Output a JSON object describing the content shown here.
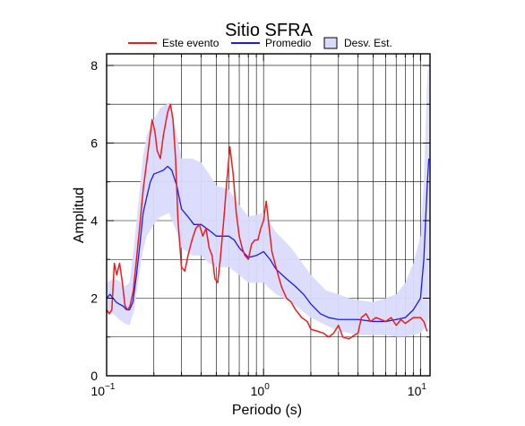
{
  "chart_data": {
    "type": "line",
    "title": "Sitio SFRA",
    "xlabel": "Periodo (s)",
    "ylabel": "Amplitud",
    "x_scale": "log",
    "xlim": [
      0.1,
      11.5
    ],
    "ylim": [
      0,
      8.3
    ],
    "y_ticks": [
      0,
      2,
      4,
      6,
      8
    ],
    "x_ticks": [
      {
        "value": 0.1,
        "base": "10",
        "exp": "−1"
      },
      {
        "value": 1,
        "base": "10",
        "exp": "0"
      },
      {
        "value": 10,
        "base": "10",
        "exp": "1"
      }
    ],
    "grid": true,
    "legend_position": "top-center",
    "legend": [
      {
        "label": "Este evento",
        "kind": "line",
        "color": "#ee1c1c"
      },
      {
        "label": "Promedio",
        "kind": "line",
        "color": "#1a1aee"
      },
      {
        "label": "Desv. Est.",
        "kind": "band",
        "color": "#dadafc"
      }
    ],
    "series": [
      {
        "name": "Este evento",
        "color": "#ee1c1c",
        "points": [
          [
            0.1,
            1.7
          ],
          [
            0.104,
            1.6
          ],
          [
            0.108,
            1.7
          ],
          [
            0.112,
            2.9
          ],
          [
            0.116,
            2.6
          ],
          [
            0.121,
            2.9
          ],
          [
            0.126,
            2.4
          ],
          [
            0.131,
            1.8
          ],
          [
            0.136,
            1.7
          ],
          [
            0.141,
            1.8
          ],
          [
            0.148,
            2.2
          ],
          [
            0.155,
            3.0
          ],
          [
            0.163,
            3.9
          ],
          [
            0.171,
            4.8
          ],
          [
            0.18,
            5.5
          ],
          [
            0.188,
            6.1
          ],
          [
            0.195,
            6.6
          ],
          [
            0.203,
            6.3
          ],
          [
            0.21,
            5.8
          ],
          [
            0.22,
            5.6
          ],
          [
            0.23,
            6.2
          ],
          [
            0.245,
            6.8
          ],
          [
            0.255,
            7.0
          ],
          [
            0.265,
            6.6
          ],
          [
            0.275,
            5.6
          ],
          [
            0.285,
            4.0
          ],
          [
            0.3,
            2.8
          ],
          [
            0.315,
            2.7
          ],
          [
            0.33,
            3.1
          ],
          [
            0.35,
            3.5
          ],
          [
            0.37,
            3.8
          ],
          [
            0.39,
            3.9
          ],
          [
            0.41,
            3.6
          ],
          [
            0.43,
            3.8
          ],
          [
            0.45,
            3.3
          ],
          [
            0.47,
            3.1
          ],
          [
            0.49,
            2.5
          ],
          [
            0.51,
            2.4
          ],
          [
            0.53,
            3.0
          ],
          [
            0.56,
            4.1
          ],
          [
            0.58,
            4.9
          ],
          [
            0.61,
            5.9
          ],
          [
            0.64,
            5.2
          ],
          [
            0.67,
            4.2
          ],
          [
            0.7,
            3.6
          ],
          [
            0.73,
            3.3
          ],
          [
            0.76,
            3.1
          ],
          [
            0.8,
            3.0
          ],
          [
            0.84,
            3.4
          ],
          [
            0.88,
            3.5
          ],
          [
            0.92,
            3.5
          ],
          [
            0.96,
            3.8
          ],
          [
            1.0,
            4.0
          ],
          [
            1.04,
            4.5
          ],
          [
            1.08,
            3.9
          ],
          [
            1.13,
            3.2
          ],
          [
            1.2,
            2.8
          ],
          [
            1.3,
            2.3
          ],
          [
            1.4,
            2.0
          ],
          [
            1.5,
            1.9
          ],
          [
            1.6,
            1.7
          ],
          [
            1.75,
            1.5
          ],
          [
            1.9,
            1.4
          ],
          [
            2.0,
            1.2
          ],
          [
            2.2,
            1.15
          ],
          [
            2.4,
            1.1
          ],
          [
            2.6,
            1.0
          ],
          [
            2.8,
            1.1
          ],
          [
            3.0,
            1.3
          ],
          [
            3.2,
            1.0
          ],
          [
            3.5,
            0.95
          ],
          [
            3.8,
            1.05
          ],
          [
            4.0,
            1.1
          ],
          [
            4.2,
            1.5
          ],
          [
            4.5,
            1.6
          ],
          [
            4.8,
            1.4
          ],
          [
            5.2,
            1.5
          ],
          [
            5.6,
            1.45
          ],
          [
            6.0,
            1.4
          ],
          [
            6.5,
            1.5
          ],
          [
            7.0,
            1.3
          ],
          [
            7.5,
            1.45
          ],
          [
            8.0,
            1.35
          ],
          [
            9.0,
            1.5
          ],
          [
            10.0,
            1.5
          ],
          [
            10.5,
            1.4
          ],
          [
            11.0,
            1.15
          ]
        ]
      },
      {
        "name": "Promedio",
        "color": "#1a1aee",
        "points": [
          [
            0.1,
            2.0
          ],
          [
            0.105,
            2.1
          ],
          [
            0.11,
            2.0
          ],
          [
            0.115,
            1.9
          ],
          [
            0.12,
            1.85
          ],
          [
            0.127,
            1.8
          ],
          [
            0.134,
            1.7
          ],
          [
            0.14,
            1.7
          ],
          [
            0.147,
            1.9
          ],
          [
            0.155,
            2.6
          ],
          [
            0.163,
            3.4
          ],
          [
            0.171,
            4.2
          ],
          [
            0.18,
            4.6
          ],
          [
            0.19,
            5.0
          ],
          [
            0.2,
            5.2
          ],
          [
            0.215,
            5.25
          ],
          [
            0.23,
            5.3
          ],
          [
            0.245,
            5.4
          ],
          [
            0.26,
            5.3
          ],
          [
            0.28,
            4.9
          ],
          [
            0.3,
            4.3
          ],
          [
            0.33,
            4.1
          ],
          [
            0.36,
            3.9
          ],
          [
            0.4,
            3.9
          ],
          [
            0.45,
            3.75
          ],
          [
            0.5,
            3.6
          ],
          [
            0.55,
            3.6
          ],
          [
            0.6,
            3.6
          ],
          [
            0.65,
            3.5
          ],
          [
            0.7,
            3.3
          ],
          [
            0.8,
            3.05
          ],
          [
            0.9,
            3.1
          ],
          [
            1.0,
            3.2
          ],
          [
            1.1,
            3.0
          ],
          [
            1.2,
            2.75
          ],
          [
            1.4,
            2.5
          ],
          [
            1.6,
            2.3
          ],
          [
            1.8,
            2.1
          ],
          [
            2.0,
            1.85
          ],
          [
            2.3,
            1.6
          ],
          [
            2.6,
            1.5
          ],
          [
            3.0,
            1.45
          ],
          [
            3.5,
            1.45
          ],
          [
            4.0,
            1.45
          ],
          [
            5.0,
            1.4
          ],
          [
            6.0,
            1.4
          ],
          [
            7.0,
            1.45
          ],
          [
            8.0,
            1.5
          ],
          [
            9.0,
            1.7
          ],
          [
            10.0,
            2.0
          ],
          [
            10.5,
            3.0
          ],
          [
            11.0,
            4.8
          ],
          [
            11.3,
            5.6
          ]
        ]
      }
    ],
    "std_band": {
      "name": "Desv. Est.",
      "color": "#dadafc",
      "points": [
        [
          0.1,
          1.6,
          2.4
        ],
        [
          0.11,
          1.6,
          2.5
        ],
        [
          0.12,
          1.45,
          2.45
        ],
        [
          0.13,
          1.35,
          2.3
        ],
        [
          0.14,
          1.3,
          2.4
        ],
        [
          0.15,
          1.7,
          3.4
        ],
        [
          0.16,
          2.5,
          4.5
        ],
        [
          0.17,
          3.2,
          5.6
        ],
        [
          0.18,
          3.6,
          6.2
        ],
        [
          0.2,
          3.9,
          6.6
        ],
        [
          0.22,
          4.1,
          6.9
        ],
        [
          0.25,
          4.2,
          7.05
        ],
        [
          0.28,
          3.7,
          6.2
        ],
        [
          0.3,
          3.3,
          5.6
        ],
        [
          0.35,
          3.1,
          5.6
        ],
        [
          0.4,
          3.1,
          5.5
        ],
        [
          0.45,
          2.9,
          5.2
        ],
        [
          0.5,
          2.8,
          4.9
        ],
        [
          0.6,
          2.8,
          4.8
        ],
        [
          0.7,
          2.6,
          4.4
        ],
        [
          0.8,
          2.4,
          4.1
        ],
        [
          1.0,
          2.4,
          4.2
        ],
        [
          1.2,
          2.1,
          3.7
        ],
        [
          1.5,
          1.9,
          3.3
        ],
        [
          2.0,
          1.5,
          2.6
        ],
        [
          2.5,
          1.3,
          2.2
        ],
        [
          3.0,
          1.15,
          2.1
        ],
        [
          3.5,
          1.1,
          2.0
        ],
        [
          4.0,
          1.05,
          1.95
        ],
        [
          5.0,
          1.05,
          1.9
        ],
        [
          6.0,
          1.05,
          2.0
        ],
        [
          7.0,
          1.0,
          2.1
        ],
        [
          8.0,
          1.0,
          2.4
        ],
        [
          9.0,
          1.05,
          2.9
        ],
        [
          10.0,
          1.1,
          3.6
        ],
        [
          10.5,
          1.2,
          5.0
        ],
        [
          11.0,
          1.3,
          7.5
        ],
        [
          11.3,
          1.5,
          8.3
        ]
      ]
    }
  }
}
